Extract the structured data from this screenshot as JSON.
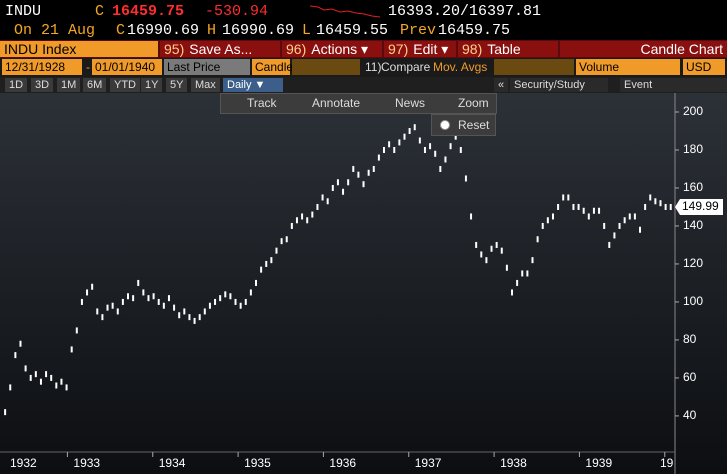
{
  "header": {
    "ticker": "INDU",
    "c_label": "C",
    "price": "16459.75",
    "change": "-530.94",
    "bid_ask": "16393.20/16397.81",
    "date": "On 21 Aug",
    "open_label": "C",
    "open": "16990.69",
    "high_label": "H",
    "high": "16990.69",
    "low_label": "L",
    "low": "16459.55",
    "prev_label": "Prev",
    "prev": "16459.75"
  },
  "toolbar": {
    "title": "INDU Index",
    "buttons": [
      {
        "key": "95)",
        "label": "Save As..."
      },
      {
        "key": "96)",
        "label": "Actions ▾"
      },
      {
        "key": "97)",
        "label": "Edit ▾"
      },
      {
        "key": "98)",
        "label": "Table"
      }
    ],
    "chart_name": "Candle Chart"
  },
  "settings": {
    "start": "12/31/1928",
    "separator": "-",
    "end": "01/01/1940",
    "field": "Last Price",
    "style": "Candle",
    "compare_key": "11)",
    "compare": "Compare",
    "studies": "Mov. Avgs",
    "lower": "Volume",
    "currency": "USD"
  },
  "periods": {
    "items": [
      "1D",
      "3D",
      "1M",
      "6M",
      "YTD",
      "1Y",
      "5Y",
      "Max"
    ],
    "frequency": "Daily ▼",
    "collapse": "«",
    "security_study": "Security/Study",
    "event": "Event"
  },
  "chart_tools": {
    "items": [
      "Track",
      "Annotate",
      "News",
      "Zoom"
    ],
    "reset": "Reset"
  },
  "chart_data": {
    "type": "scatter",
    "color": "#ffffff",
    "x": [
      1932.27,
      1932.33,
      1932.39,
      1932.45,
      1932.51,
      1932.57,
      1932.63,
      1932.69,
      1932.75,
      1932.81,
      1932.87,
      1932.93,
      1932.99,
      1933.05,
      1933.11,
      1933.17,
      1933.23,
      1933.29,
      1933.35,
      1933.41,
      1933.47,
      1933.53,
      1933.59,
      1933.65,
      1933.71,
      1933.77,
      1933.83,
      1933.89,
      1933.95,
      1934.01,
      1934.07,
      1934.13,
      1934.19,
      1934.25,
      1934.31,
      1934.37,
      1934.43,
      1934.49,
      1934.55,
      1934.61,
      1934.67,
      1934.73,
      1934.79,
      1934.85,
      1934.91,
      1934.97,
      1935.03,
      1935.09,
      1935.15,
      1935.21,
      1935.27,
      1935.33,
      1935.39,
      1935.45,
      1935.51,
      1935.57,
      1935.63,
      1935.69,
      1935.75,
      1935.81,
      1935.87,
      1935.93,
      1935.99,
      1936.05,
      1936.11,
      1936.17,
      1936.23,
      1936.29,
      1936.35,
      1936.41,
      1936.47,
      1936.53,
      1936.59,
      1936.65,
      1936.71,
      1936.77,
      1936.83,
      1936.89,
      1936.95,
      1937.01,
      1937.07,
      1937.13,
      1937.19,
      1937.25,
      1937.31,
      1937.37,
      1937.43,
      1937.49,
      1937.55,
      1937.61,
      1937.67,
      1937.73,
      1937.79,
      1937.85,
      1937.91,
      1937.97,
      1938.03,
      1938.09,
      1938.15,
      1938.21,
      1938.27,
      1938.33,
      1938.39,
      1938.45,
      1938.51,
      1938.57,
      1938.63,
      1938.69,
      1938.75,
      1938.81,
      1938.87,
      1938.93,
      1938.99,
      1939.05,
      1939.11,
      1939.17,
      1939.23,
      1939.29,
      1939.35,
      1939.41,
      1939.47,
      1939.53,
      1939.59,
      1939.65,
      1939.71,
      1939.77,
      1939.83,
      1939.89,
      1939.95,
      1940.01,
      1940.07
    ],
    "values": [
      42,
      55,
      72,
      78,
      65,
      60,
      62,
      58,
      62,
      60,
      56,
      58,
      55,
      75,
      85,
      100,
      105,
      108,
      95,
      92,
      97,
      98,
      95,
      100,
      103,
      102,
      110,
      105,
      102,
      103,
      100,
      98,
      102,
      97,
      93,
      95,
      92,
      90,
      92,
      95,
      98,
      100,
      102,
      104,
      103,
      100,
      98,
      100,
      105,
      110,
      117,
      120,
      122,
      127,
      132,
      133,
      140,
      143,
      145,
      143,
      146,
      150,
      155,
      153,
      160,
      163,
      158,
      163,
      170,
      167,
      162,
      168,
      170,
      176,
      180,
      183,
      180,
      184,
      187,
      190,
      192,
      185,
      180,
      182,
      178,
      170,
      175,
      182,
      187,
      180,
      165,
      145,
      130,
      125,
      122,
      128,
      130,
      127,
      118,
      105,
      110,
      115,
      115,
      122,
      133,
      140,
      143,
      145,
      150,
      155,
      155,
      150,
      150,
      148,
      145,
      148,
      148,
      140,
      130,
      135,
      140,
      143,
      145,
      145,
      138,
      150,
      155,
      153,
      152,
      150,
      149.99
    ],
    "xlim": [
      1932.21,
      1940.12
    ],
    "xticks": [
      1932,
      1933,
      1934,
      1935,
      1936,
      1937,
      1938,
      1939,
      {
        "value": 1940,
        "label": "19"
      }
    ],
    "ylim": [
      21,
      210
    ],
    "yticks": [
      40,
      60,
      80,
      100,
      120,
      140,
      160,
      180,
      200
    ],
    "grid": false
  }
}
